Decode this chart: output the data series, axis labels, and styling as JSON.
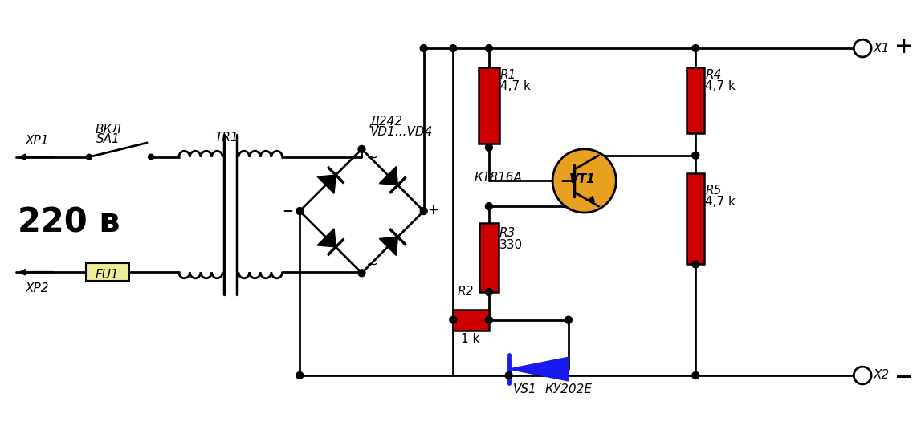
{
  "bg_color": "#ffffff",
  "line_color": "#000000",
  "line_width": 2.0,
  "red_color": "#cc0000",
  "blue_color": "#1a1aee",
  "orange_color": "#e8a020",
  "yellow_color": "#eeee99",
  "labels": {
    "voltage": "220 в",
    "xp1": "ХР1",
    "xp2": "ХР2",
    "fu1": "FU1",
    "sa1_line1": "ВКЛ",
    "sa1_line2": "SA1",
    "tr1": "TR1",
    "d_line1": "Д242",
    "d_line2": "VD1...VD4",
    "r1": "R1",
    "r1_val": "4,7 k",
    "r2": "R2",
    "r2_val": "1 k",
    "r3": "R3",
    "r3_val": "330",
    "r4": "R4",
    "r4_val": "4,7 k",
    "r5": "R5",
    "r5_val": "4,7 k",
    "vt1_name": "КТ816А",
    "vt1_label": "VT1",
    "vs1_label": "VS1",
    "vs1_name": "КУ202Е",
    "x1_label": "Х1",
    "x2_label": "Х2",
    "plus": "+",
    "minus": "−",
    "tilde": "~",
    "minus_sign": "−"
  }
}
